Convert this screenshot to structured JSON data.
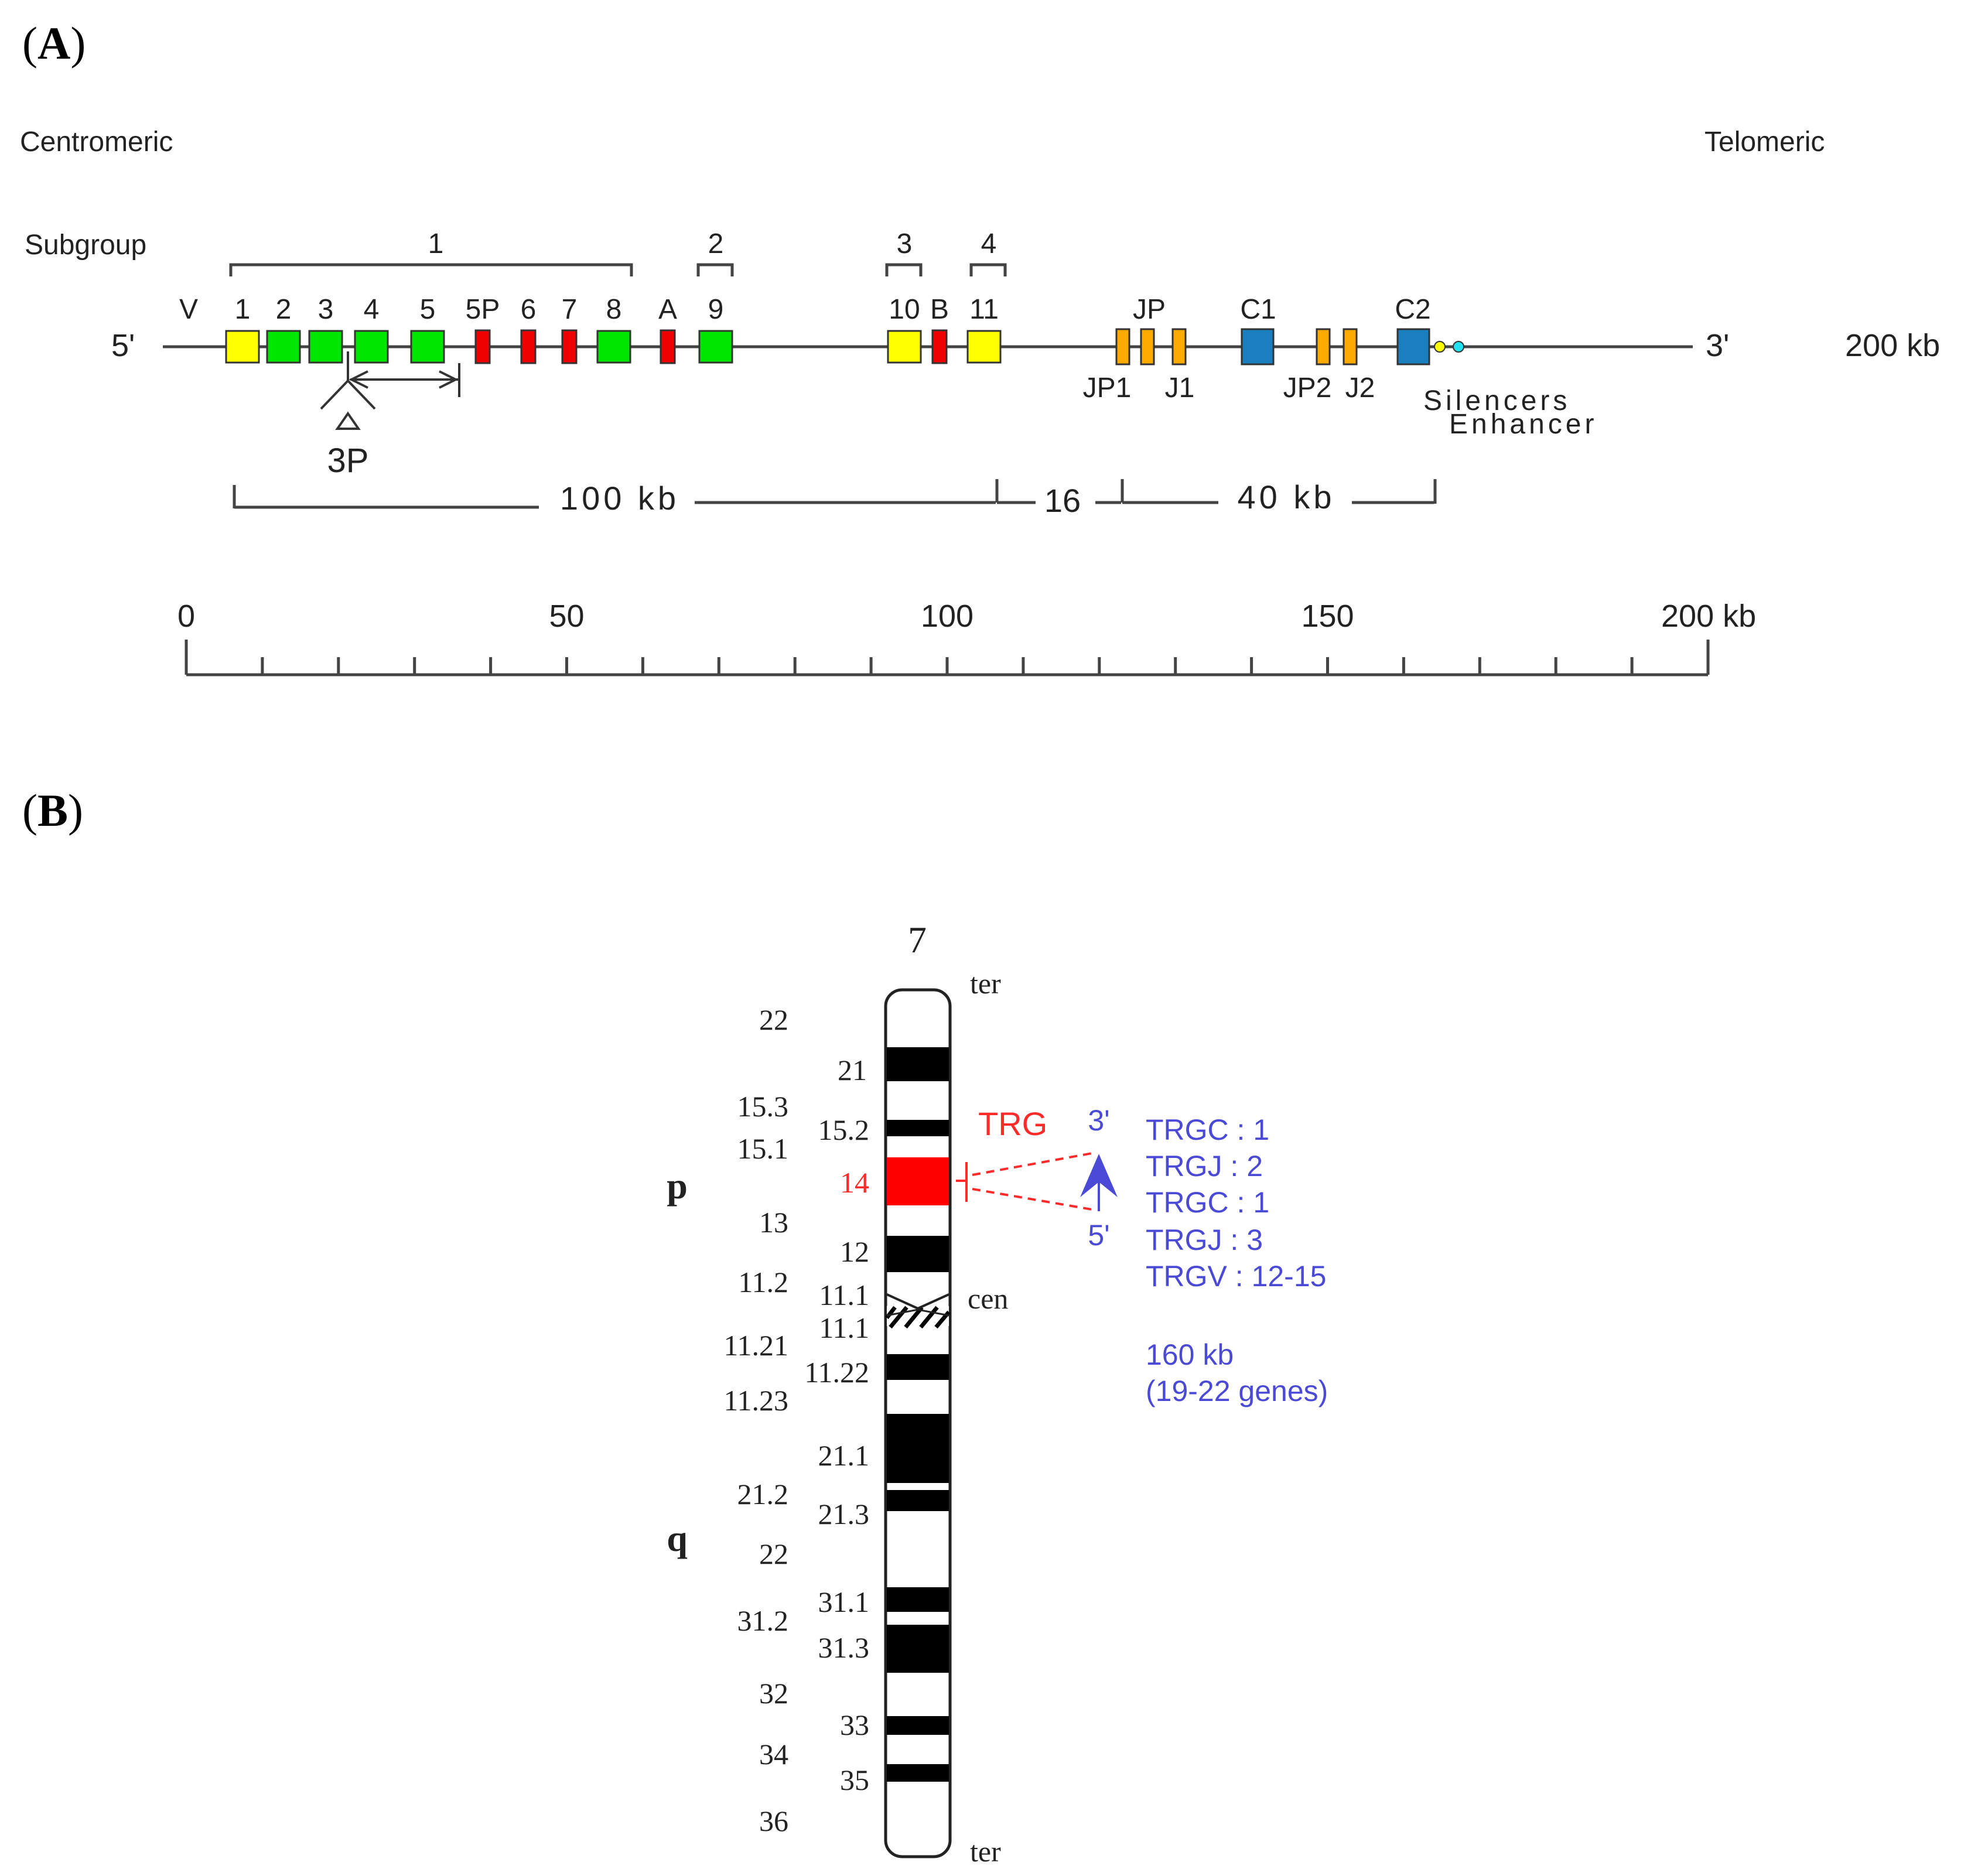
{
  "panels": {
    "a": {
      "open": "(",
      "letter": "A",
      "close": ")"
    },
    "b": {
      "open": "(",
      "letter": "B",
      "close": ")"
    }
  },
  "panel_a": {
    "centromeric": "Centromeric",
    "telomeric": "Telomeric",
    "subgroup_label": "Subgroup",
    "subgroups": [
      "1",
      "2",
      "3",
      "4"
    ],
    "v_label": "V",
    "five_prime": "5'",
    "three_prime": "3'",
    "size_label": "200 kb",
    "genes": [
      {
        "label": "1",
        "type": "yellow"
      },
      {
        "label": "2",
        "type": "green"
      },
      {
        "label": "3",
        "type": "green"
      },
      {
        "label": "4",
        "type": "green"
      },
      {
        "label": "5",
        "type": "green"
      },
      {
        "label": "5P",
        "type": "red"
      },
      {
        "label": "6",
        "type": "red"
      },
      {
        "label": "7",
        "type": "red"
      },
      {
        "label": "8",
        "type": "green"
      },
      {
        "label": "A",
        "type": "red"
      },
      {
        "label": "9",
        "type": "green"
      },
      {
        "label": "10",
        "type": "yellow"
      },
      {
        "label": "B",
        "type": "red"
      },
      {
        "label": "11",
        "type": "yellow"
      }
    ],
    "jp_label": "JP",
    "c1_label": "C1",
    "c2_label": "C2",
    "jp1_label": "JP1",
    "j1_label": "J1",
    "jp2_label": "JP2",
    "j2_label": "J2",
    "silencers_label": "Silencers",
    "enhancer_label": "Enhancer",
    "insertion_label": "3P",
    "span_100": "100 kb",
    "span_16": "16",
    "span_40": "40 kb",
    "scale_ticks": [
      "0",
      "50",
      "100",
      "150",
      "200 kb"
    ],
    "colors": {
      "yellow": "#ffff00",
      "green": "#00e600",
      "red": "#ee0000",
      "orange": "#ffaa00",
      "blue": "#1b7fbf"
    }
  },
  "panel_b": {
    "chromosome": "7",
    "ter_top": "ter",
    "ter_bottom": "ter",
    "cen": "cen",
    "arm_p": "p",
    "arm_q": "q",
    "left_bands": [
      "22",
      "15.3",
      "15.1",
      "13",
      "11.2",
      "11.21",
      "11.23",
      "21.2",
      "22",
      "31.2",
      "32",
      "34",
      "36"
    ],
    "right_bands": [
      "21",
      "15.2",
      "14",
      "12",
      "11.1",
      "11.1",
      "11.22",
      "21.1",
      "21.3",
      "31.1",
      "31.3",
      "33",
      "35"
    ],
    "trg_label": "TRG",
    "three_prime": "3'",
    "five_prime": "5'",
    "gene_list": [
      "TRGC : 1",
      "TRGJ : 2",
      "TRGC : 1",
      "TRGJ : 3",
      "TRGV : 12-15"
    ],
    "size": "160 kb",
    "genes_count": "(19-22 genes)"
  }
}
